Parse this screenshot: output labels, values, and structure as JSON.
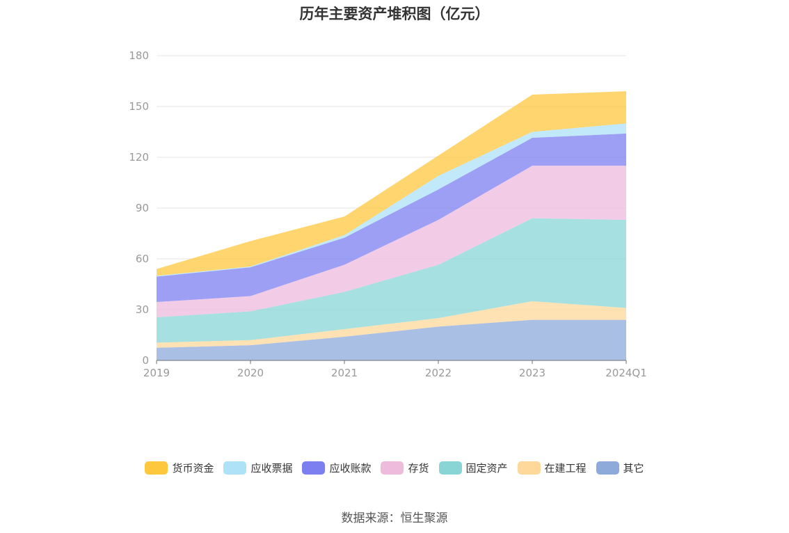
{
  "chart_data": {
    "type": "area",
    "stacked": true,
    "title": "历年主要资产堆积图（亿元）",
    "xlabel": "",
    "ylabel": "",
    "ylim": [
      0,
      180
    ],
    "yticks": [
      0,
      30,
      60,
      90,
      120,
      150,
      180
    ],
    "grid": true,
    "legend_position": "bottom",
    "categories": [
      "2019",
      "2020",
      "2021",
      "2022",
      "2023",
      "2024Q1"
    ],
    "series": [
      {
        "name": "其它",
        "color": "#8eaadb",
        "values": [
          7.5,
          9,
          14,
          20,
          24,
          24
        ]
      },
      {
        "name": "在建工程",
        "color": "#fdd89a",
        "values": [
          3,
          3,
          4.5,
          5,
          11,
          7
        ]
      },
      {
        "name": "固定资产",
        "color": "#89d5d5",
        "values": [
          15,
          17,
          22,
          31.5,
          49,
          52
        ]
      },
      {
        "name": "存货",
        "color": "#eebbdd",
        "values": [
          9,
          9,
          16,
          26.5,
          31,
          32
        ]
      },
      {
        "name": "应收账款",
        "color": "#7b7ff0",
        "values": [
          15,
          17,
          16,
          18,
          16.5,
          19
        ]
      },
      {
        "name": "应收票据",
        "color": "#aee2f7",
        "values": [
          0.5,
          0.5,
          1.5,
          8,
          3.5,
          6
        ]
      },
      {
        "name": "货币资金",
        "color": "#fdc73e",
        "values": [
          4,
          15,
          11,
          12,
          22,
          19
        ]
      }
    ],
    "legend_order": [
      "货币资金",
      "应收票据",
      "应收账款",
      "存货",
      "固定资产",
      "在建工程",
      "其它"
    ]
  },
  "source": "数据来源：恒生聚源"
}
